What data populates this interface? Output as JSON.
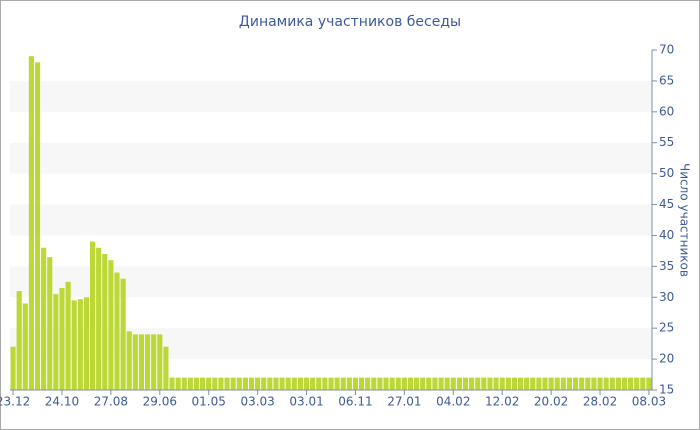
{
  "chart_data": {
    "type": "bar",
    "title": "Динамика участников беседы",
    "y_axis_label": "Число участников",
    "categories": [
      "23.12",
      null,
      null,
      null,
      null,
      null,
      null,
      null,
      "24.10",
      null,
      null,
      null,
      null,
      null,
      null,
      null,
      "27.08",
      null,
      null,
      null,
      null,
      null,
      null,
      null,
      "29.06",
      null,
      null,
      null,
      null,
      null,
      null,
      null,
      "01.05",
      null,
      null,
      null,
      null,
      null,
      null,
      null,
      "03.03",
      null,
      null,
      null,
      null,
      null,
      null,
      null,
      "03.01",
      null,
      null,
      null,
      null,
      null,
      null,
      null,
      "06.11",
      null,
      null,
      null,
      null,
      null,
      null,
      null,
      "27.01",
      null,
      null,
      null,
      null,
      null,
      null,
      null,
      "04.02",
      null,
      null,
      null,
      null,
      null,
      null,
      null,
      "12.02",
      null,
      null,
      null,
      null,
      null,
      null,
      null,
      "20.02",
      null,
      null,
      null,
      null,
      null,
      null,
      null,
      "28.02",
      null,
      null,
      null,
      null,
      null,
      null,
      null,
      "08.03"
    ],
    "values": [
      22,
      31,
      29,
      69,
      68,
      38,
      36.5,
      30.5,
      31.5,
      32.5,
      29.5,
      29.7,
      30,
      39,
      38,
      37,
      36,
      34,
      33,
      24.5,
      24,
      24,
      24,
      24,
      24,
      22,
      17,
      17,
      17,
      17,
      17,
      17,
      17,
      17,
      17,
      17,
      17,
      17,
      17,
      17,
      17,
      17,
      17,
      17,
      17,
      17,
      17,
      17,
      17,
      17,
      17,
      17,
      17,
      17,
      17,
      17,
      17,
      17,
      17,
      17,
      17,
      17,
      17,
      17,
      17,
      17,
      17,
      17,
      17,
      17,
      17,
      17,
      17,
      17,
      17,
      17,
      17,
      17,
      17,
      17,
      17,
      17,
      17,
      17,
      17,
      17,
      17,
      17,
      17,
      17,
      17,
      17,
      17,
      17,
      17,
      17,
      17,
      17,
      17,
      17,
      17,
      17,
      17,
      17,
      17
    ],
    "color": "#bcd836",
    "ylim": [
      15,
      70
    ],
    "yticks": [
      15,
      20,
      25,
      30,
      35,
      40,
      45,
      50,
      55,
      60,
      65,
      70
    ],
    "grid_bands": true,
    "y_axis_side": "right"
  }
}
